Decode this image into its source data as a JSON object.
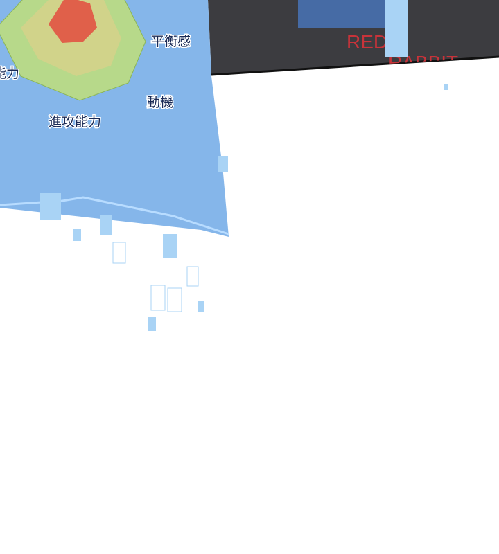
{
  "labels": {
    "balance": "平衡感",
    "motivation": "動機",
    "attack": "進攻能力",
    "left_cut": "能力"
  },
  "sign": {
    "line1": "RED",
    "line2": "RABBIT"
  }
}
